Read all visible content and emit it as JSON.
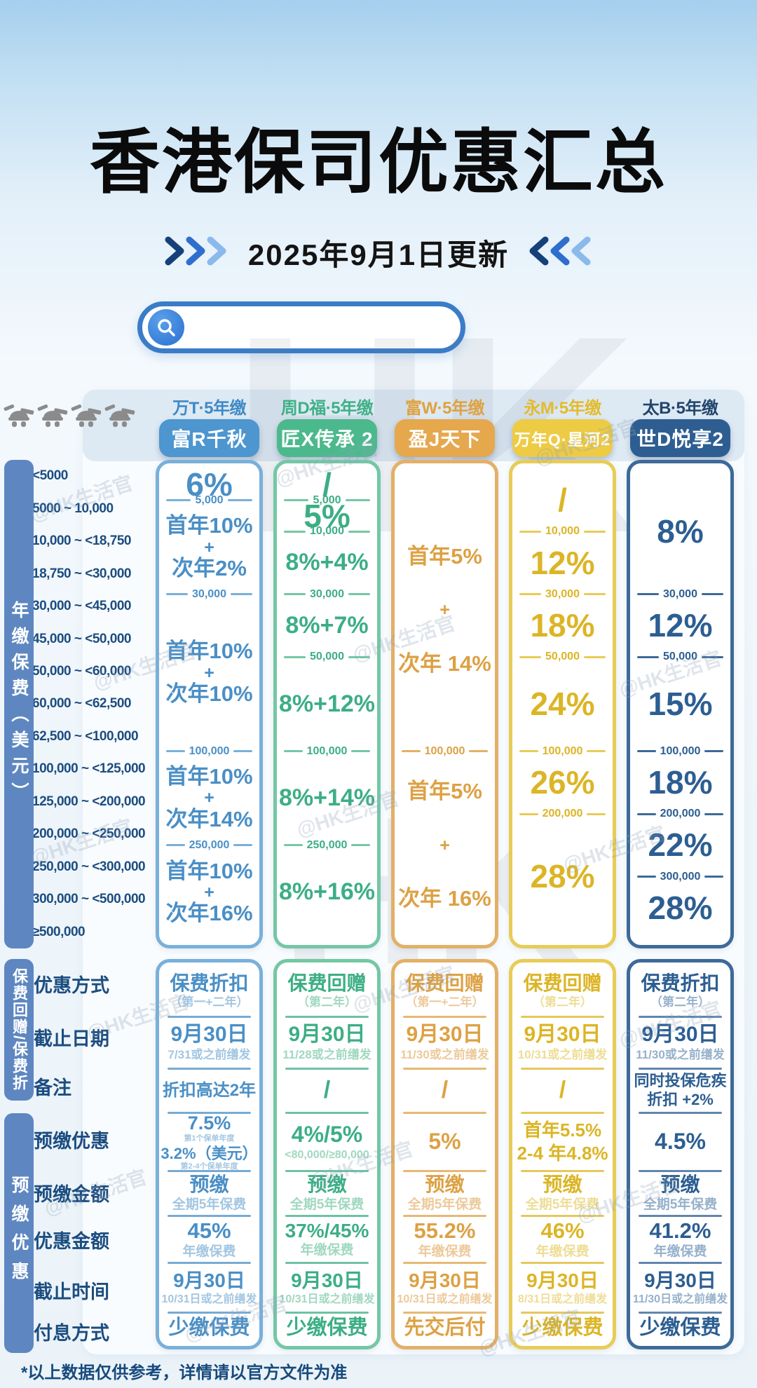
{
  "page": {
    "title": "香港保司优惠汇总",
    "update_badge": "2025年9月1日更新",
    "footer_note": "*以上数据仅供参考，详情请以官方文件为准",
    "watermark": "@HK生活官",
    "watermark_big": "HK"
  },
  "search": {
    "placeholder": ""
  },
  "sidebar": {
    "sections": [
      {
        "label": "年缴保费（美元）"
      },
      {
        "label": "保费回赠/保费折"
      },
      {
        "label": "预缴优惠"
      }
    ]
  },
  "tier_labels": [
    "<5000",
    "5000 ~ 10,000",
    "10,000 ~ <18,750",
    "18,750 ~ <30,000",
    "30,000 ~ <45,000",
    "45,000 ~ <50,000",
    "50,000 ~ <60,000",
    "60,000 ~ <62,500",
    "62,500 ~ <100,000",
    "100,000 ~ <125,000",
    "125,000 ~ <200,000",
    "200,000 ~ <250,000",
    "250,000 ~ <300,000",
    "300,000 ~ <500,000",
    "≥500,000"
  ],
  "promo_row_labels": [
    "优惠方式",
    "截止日期",
    "备注",
    "预缴优惠",
    "预缴金额",
    "优惠金额",
    "截止时间",
    "付息方式"
  ],
  "promo_row_keys": [
    "method",
    "deadline",
    "note",
    "prepay-rate",
    "prepay-amount",
    "discount-amount",
    "prepay-deadline",
    "interest-method"
  ],
  "columns": [
    {
      "company": "万T·5年缴",
      "product": "富R千秋",
      "colors": {
        "header": "#3f8ac6",
        "pill": "#4d96cf",
        "accent": "#4a8fc6",
        "border": "#79b0da",
        "light": "#a3c6e1"
      },
      "tiers": [
        {
          "text": [
            "6%"
          ],
          "span": 1
        },
        {
          "divider": "5,000"
        },
        {
          "text": [
            "首年10%",
            "+",
            "次年2%"
          ],
          "span": 3
        },
        {
          "divider": "30,000"
        },
        {
          "text": [
            "首年10%",
            "+",
            "次年10%"
          ],
          "span": 5
        },
        {
          "divider": "100,000"
        },
        {
          "text": [
            "首年10%",
            "+",
            "次年14%"
          ],
          "span": 3
        },
        {
          "divider": "250,000"
        },
        {
          "text": [
            "首年10%",
            "+",
            "次年16%"
          ],
          "span": 3
        }
      ],
      "promo": [
        {
          "main": "保费折扣",
          "sub": "（第一+二年）"
        },
        {
          "main": "9月30日",
          "sub": "7/31或之前缮发"
        },
        {
          "main": "折扣高达2年"
        },
        {
          "stack": [
            {
              "main": "7.5%",
              "sub": "第1个保单年度"
            },
            {
              "main": "3.2%（美元）",
              "sub": "第2-4个保单年度"
            }
          ]
        },
        {
          "main": "预缴",
          "sub": "全期5年保费"
        },
        {
          "main": "45%",
          "sub": "年缴保费"
        },
        {
          "main": "9月30日",
          "sub": "10/31日或之前缮发"
        },
        {
          "main": "少缴保费"
        }
      ]
    },
    {
      "company": "周D福·5年缴",
      "product": "匠X传承 2",
      "colors": {
        "header": "#3fb087",
        "pill": "#4cb98d",
        "accent": "#3cae85",
        "border": "#74c7a5",
        "light": "#a0d8c0"
      },
      "tiers": [
        {
          "text": [
            "/"
          ],
          "span": 1
        },
        {
          "divider": "5,000"
        },
        {
          "text": [
            "5%"
          ],
          "span": 1
        },
        {
          "divider": "10,000"
        },
        {
          "text": [
            "8%+4%"
          ],
          "span": 2
        },
        {
          "divider": "30,000"
        },
        {
          "text": [
            "8%+7%"
          ],
          "span": 2
        },
        {
          "divider": "50,000"
        },
        {
          "text": [
            "8%+12%"
          ],
          "span": 3
        },
        {
          "divider": "100,000"
        },
        {
          "text": [
            "8%+14%"
          ],
          "span": 3
        },
        {
          "divider": "250,000"
        },
        {
          "text": [
            "8%+16%"
          ],
          "span": 3
        }
      ],
      "promo": [
        {
          "main": "保费回赠",
          "sub": "（第二年）"
        },
        {
          "main": "9月30日",
          "sub": "11/28或之前缮发"
        },
        {
          "main": "/"
        },
        {
          "main": "4%/5%",
          "sub": "<80,000/≥80,000"
        },
        {
          "main": "预缴",
          "sub": "全期5年保费"
        },
        {
          "main": "37%/45%",
          "sub": "年缴保费"
        },
        {
          "main": "9月30日",
          "sub": "10/31日或之前缮发"
        },
        {
          "main": "少缴保费"
        }
      ]
    },
    {
      "company": "富W·5年缴",
      "product": "盈J天下",
      "colors": {
        "header": "#dfa23f",
        "pill": "#e5a84d",
        "accent": "#dda144",
        "border": "#e3b067",
        "light": "#ecca9b"
      },
      "tiers": [
        {
          "text": [
            "首年5%",
            "+",
            "次年 14%"
          ],
          "span": 9
        },
        {
          "divider": "100,000"
        },
        {
          "text": [
            "首年5%",
            "+",
            "次年 16%"
          ],
          "span": 6
        }
      ],
      "promo": [
        {
          "main": "保费回赠",
          "sub": "（第一+二年）"
        },
        {
          "main": "9月30日",
          "sub": "11/30或之前缮发"
        },
        {
          "main": "/"
        },
        {
          "main": "5%"
        },
        {
          "main": "预缴",
          "sub": "全期5年保费"
        },
        {
          "main": "55.2%",
          "sub": "年缴保费"
        },
        {
          "main": "9月30日",
          "sub": "10/31日或之前缮发"
        },
        {
          "main": "先交后付"
        }
      ]
    },
    {
      "company": "永M·5年缴",
      "product": "万年Q·星河2",
      "colors": {
        "header": "#e3bb2c",
        "pill": "#eecb44",
        "accent": "#dcb526",
        "border": "#e8cc55",
        "light": "#eedd96"
      },
      "tiers": [
        {
          "text": [
            "/"
          ],
          "span": 2
        },
        {
          "divider": "10,000"
        },
        {
          "text": [
            "12%"
          ],
          "span": 2
        },
        {
          "divider": "30,000"
        },
        {
          "text": [
            "18%"
          ],
          "span": 2
        },
        {
          "divider": "50,000"
        },
        {
          "text": [
            "24%"
          ],
          "span": 3
        },
        {
          "divider": "100,000"
        },
        {
          "text": [
            "26%"
          ],
          "span": 2
        },
        {
          "divider": "200,000"
        },
        {
          "text": [
            "28%"
          ],
          "span": 4
        }
      ],
      "promo": [
        {
          "main": "保费回赠",
          "sub": "（第二年）"
        },
        {
          "main": "9月30日",
          "sub": "10/31或之前缮发"
        },
        {
          "main": "/"
        },
        {
          "lines": [
            "首年5.5%",
            "2-4 年4.8%"
          ]
        },
        {
          "main": "预缴",
          "sub": "全期5年保费"
        },
        {
          "main": "46%",
          "sub": "年缴保费"
        },
        {
          "main": "9月30日",
          "sub": "8/31日或之前缮发"
        },
        {
          "main": "少缴保费"
        }
      ]
    },
    {
      "company": "太B·5年缴",
      "product": "世D悦享2",
      "colors": {
        "header": "#21456c",
        "pill": "#2e5e91",
        "accent": "#2c5e92",
        "border": "#3d6a99",
        "light": "#96b1cb"
      },
      "tiers": [
        {
          "text": [
            "8%"
          ],
          "span": 4
        },
        {
          "divider": "30,000"
        },
        {
          "text": [
            "12%"
          ],
          "span": 2
        },
        {
          "divider": "50,000"
        },
        {
          "text": [
            "15%"
          ],
          "span": 3
        },
        {
          "divider": "100,000"
        },
        {
          "text": [
            "18%"
          ],
          "span": 2
        },
        {
          "divider": "200,000"
        },
        {
          "text": [
            "22%"
          ],
          "span": 2
        },
        {
          "divider": "300,000"
        },
        {
          "text": [
            "28%"
          ],
          "span": 2
        }
      ],
      "promo": [
        {
          "main": "保费折扣",
          "sub": "（第二年）"
        },
        {
          "main": "9月30日",
          "sub": "11/30或之前缮发"
        },
        {
          "lines": [
            "同时投保危疾",
            "折扣 +2%"
          ]
        },
        {
          "main": "4.5%"
        },
        {
          "main": "预缴",
          "sub": "全期5年保费"
        },
        {
          "main": "41.2%",
          "sub": "年缴保费"
        },
        {
          "main": "9月30日",
          "sub": "11/30日或之前缮发"
        },
        {
          "main": "少缴保费"
        }
      ]
    }
  ]
}
